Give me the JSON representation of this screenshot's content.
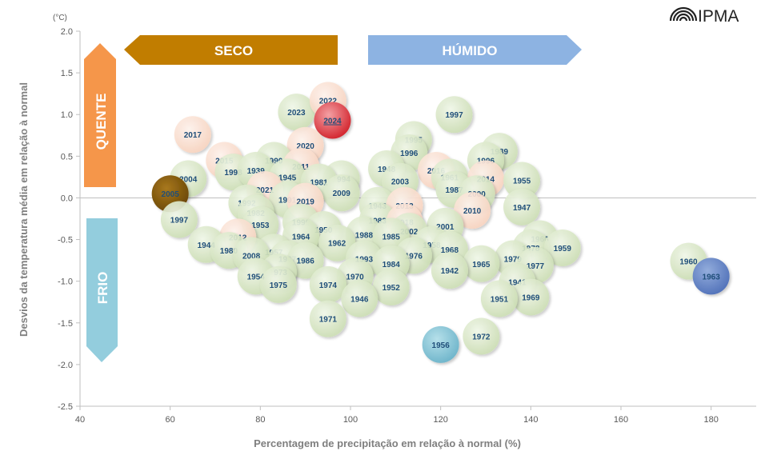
{
  "logo": {
    "text": "IPMA"
  },
  "chart_data": {
    "type": "scatter",
    "xlabel": "Percentagem de precipitação em relação à normal (%)",
    "ylabel": "Desvios da temperatura média em relação à normal",
    "y_unit": "(°C)",
    "xlim": [
      40,
      190
    ],
    "ylim": [
      -2.5,
      2.0
    ],
    "x_ticks": [
      40,
      60,
      80,
      100,
      120,
      140,
      160,
      180
    ],
    "y_ticks": [
      2.0,
      1.5,
      1.0,
      0.5,
      0.0,
      -0.5,
      -1.0,
      -1.5,
      -2.0,
      -2.5
    ],
    "grid": false,
    "bands": {
      "dry": "SECO",
      "wet": "HÚMIDO",
      "hot": "QUENTE",
      "cold": "FRIO"
    },
    "colors": {
      "default": "#d8e8c4",
      "warm": "#fde3d4",
      "dark": "#8b5e0a",
      "cold": "#8ccbda",
      "blue": "#6f8fce",
      "highlight": "#e0343c",
      "seco": "#c17d00",
      "humido": "#8db3e2",
      "quente": "#f5964a",
      "frio": "#93cddd"
    },
    "points": [
      {
        "label": "2023",
        "x": 88,
        "y": 1.03,
        "c": "default"
      },
      {
        "label": "2022",
        "x": 95,
        "y": 1.17,
        "c": "warm"
      },
      {
        "label": "2024",
        "x": 96,
        "y": 0.93,
        "c": "highlight"
      },
      {
        "label": "1997",
        "x": 123,
        "y": 1.0,
        "c": "default"
      },
      {
        "label": "2017",
        "x": 65,
        "y": 0.76,
        "c": "warm"
      },
      {
        "label": "2020",
        "x": 90,
        "y": 0.63,
        "c": "warm"
      },
      {
        "label": "1995",
        "x": 114,
        "y": 0.7,
        "c": "default"
      },
      {
        "label": "1989",
        "x": 133,
        "y": 0.56,
        "c": "default"
      },
      {
        "label": "1996",
        "x": 113,
        "y": 0.54,
        "c": "default"
      },
      {
        "label": "1996",
        "x": 130,
        "y": 0.45,
        "c": "default"
      },
      {
        "label": "2015",
        "x": 72,
        "y": 0.45,
        "c": "warm"
      },
      {
        "label": "1990",
        "x": 83,
        "y": 0.45,
        "c": "default"
      },
      {
        "label": "2011",
        "x": 89,
        "y": 0.38,
        "c": "warm"
      },
      {
        "label": "1998",
        "x": 74,
        "y": 0.31,
        "c": "default"
      },
      {
        "label": "1939",
        "x": 79,
        "y": 0.33,
        "c": "default"
      },
      {
        "label": "1945",
        "x": 86,
        "y": 0.25,
        "c": "default"
      },
      {
        "label": "1948",
        "x": 108,
        "y": 0.35,
        "c": "default"
      },
      {
        "label": "2016",
        "x": 119,
        "y": 0.33,
        "c": "warm"
      },
      {
        "label": "1961",
        "x": 122,
        "y": 0.25,
        "c": "default"
      },
      {
        "label": "2014",
        "x": 130,
        "y": 0.23,
        "c": "warm"
      },
      {
        "label": "1955",
        "x": 138,
        "y": 0.21,
        "c": "default"
      },
      {
        "label": "2004",
        "x": 64,
        "y": 0.23,
        "c": "default"
      },
      {
        "label": "1994",
        "x": 98,
        "y": 0.23,
        "c": "default"
      },
      {
        "label": "1981",
        "x": 93,
        "y": 0.19,
        "c": "default"
      },
      {
        "label": "2003",
        "x": 111,
        "y": 0.2,
        "c": "default"
      },
      {
        "label": "1987",
        "x": 123,
        "y": 0.1,
        "c": "default"
      },
      {
        "label": "2021",
        "x": 81,
        "y": 0.1,
        "c": "warm"
      },
      {
        "label": "2009",
        "x": 98,
        "y": 0.06,
        "c": "default"
      },
      {
        "label": "2000",
        "x": 128,
        "y": 0.05,
        "c": "default"
      },
      {
        "label": "2005",
        "x": 60,
        "y": 0.05,
        "c": "dark"
      },
      {
        "label": "1991",
        "x": 86,
        "y": -0.02,
        "c": "default"
      },
      {
        "label": "2019",
        "x": 90,
        "y": -0.04,
        "c": "warm"
      },
      {
        "label": "1992",
        "x": 77,
        "y": -0.06,
        "c": "default"
      },
      {
        "label": "1943",
        "x": 106,
        "y": -0.09,
        "c": "default"
      },
      {
        "label": "2013",
        "x": 112,
        "y": -0.09,
        "c": "warm"
      },
      {
        "label": "1947",
        "x": 138,
        "y": -0.11,
        "c": "default"
      },
      {
        "label": "2010",
        "x": 127,
        "y": -0.15,
        "c": "warm"
      },
      {
        "label": "1982",
        "x": 79,
        "y": -0.18,
        "c": "default"
      },
      {
        "label": "1997",
        "x": 62,
        "y": -0.26,
        "c": "default"
      },
      {
        "label": "1999",
        "x": 89,
        "y": -0.29,
        "c": "default"
      },
      {
        "label": "1983",
        "x": 106,
        "y": -0.27,
        "c": "default"
      },
      {
        "label": "2018",
        "x": 112,
        "y": -0.29,
        "c": "warm"
      },
      {
        "label": "1953",
        "x": 80,
        "y": -0.32,
        "c": "default"
      },
      {
        "label": "2001",
        "x": 121,
        "y": -0.34,
        "c": "default"
      },
      {
        "label": "1950",
        "x": 94,
        "y": -0.38,
        "c": "default"
      },
      {
        "label": "2002",
        "x": 113,
        "y": -0.4,
        "c": "default"
      },
      {
        "label": "1964",
        "x": 89,
        "y": -0.46,
        "c": "default"
      },
      {
        "label": "1988",
        "x": 103,
        "y": -0.44,
        "c": "default"
      },
      {
        "label": "1985",
        "x": 109,
        "y": -0.46,
        "c": "default"
      },
      {
        "label": "2012",
        "x": 75,
        "y": -0.47,
        "c": "warm"
      },
      {
        "label": "1966",
        "x": 142,
        "y": -0.49,
        "c": "default"
      },
      {
        "label": "1962",
        "x": 97,
        "y": -0.54,
        "c": "default"
      },
      {
        "label": "1958",
        "x": 118,
        "y": -0.56,
        "c": "default"
      },
      {
        "label": "1944",
        "x": 68,
        "y": -0.56,
        "c": "default"
      },
      {
        "label": "1978",
        "x": 140,
        "y": -0.6,
        "c": "default"
      },
      {
        "label": "1959",
        "x": 147,
        "y": -0.6,
        "c": "default"
      },
      {
        "label": "1968",
        "x": 122,
        "y": -0.62,
        "c": "default"
      },
      {
        "label": "1957",
        "x": 83,
        "y": -0.65,
        "c": "default"
      },
      {
        "label": "1980",
        "x": 73,
        "y": -0.63,
        "c": "default"
      },
      {
        "label": "1976",
        "x": 114,
        "y": -0.69,
        "c": "default"
      },
      {
        "label": "2008",
        "x": 78,
        "y": -0.69,
        "c": "default"
      },
      {
        "label": "1979",
        "x": 136,
        "y": -0.73,
        "c": "default"
      },
      {
        "label": "1967",
        "x": 86,
        "y": -0.73,
        "c": "default"
      },
      {
        "label": "1993",
        "x": 103,
        "y": -0.73,
        "c": "default"
      },
      {
        "label": "1986",
        "x": 90,
        "y": -0.75,
        "c": "default"
      },
      {
        "label": "1965",
        "x": 129,
        "y": -0.79,
        "c": "default"
      },
      {
        "label": "1984",
        "x": 109,
        "y": -0.79,
        "c": "default"
      },
      {
        "label": "1977",
        "x": 141,
        "y": -0.81,
        "c": "default"
      },
      {
        "label": "1960",
        "x": 175,
        "y": -0.76,
        "c": "default"
      },
      {
        "label": "1963",
        "x": 180,
        "y": -0.94,
        "c": "blue"
      },
      {
        "label": "1942",
        "x": 122,
        "y": -0.87,
        "c": "default"
      },
      {
        "label": "1973",
        "x": 84,
        "y": -0.89,
        "c": "default"
      },
      {
        "label": "1970",
        "x": 101,
        "y": -0.94,
        "c": "default"
      },
      {
        "label": "1954",
        "x": 79,
        "y": -0.94,
        "c": "default"
      },
      {
        "label": "1941",
        "x": 137,
        "y": -1.01,
        "c": "default"
      },
      {
        "label": "1974",
        "x": 95,
        "y": -1.04,
        "c": "default"
      },
      {
        "label": "1975",
        "x": 84,
        "y": -1.04,
        "c": "default"
      },
      {
        "label": "1952",
        "x": 109,
        "y": -1.07,
        "c": "default"
      },
      {
        "label": "1969",
        "x": 140,
        "y": -1.19,
        "c": "default"
      },
      {
        "label": "1946",
        "x": 102,
        "y": -1.21,
        "c": "default"
      },
      {
        "label": "1951",
        "x": 133,
        "y": -1.21,
        "c": "default"
      },
      {
        "label": "1971",
        "x": 95,
        "y": -1.45,
        "c": "default"
      },
      {
        "label": "1972",
        "x": 129,
        "y": -1.66,
        "c": "default"
      },
      {
        "label": "1956",
        "x": 120,
        "y": -1.76,
        "c": "cold"
      }
    ]
  }
}
